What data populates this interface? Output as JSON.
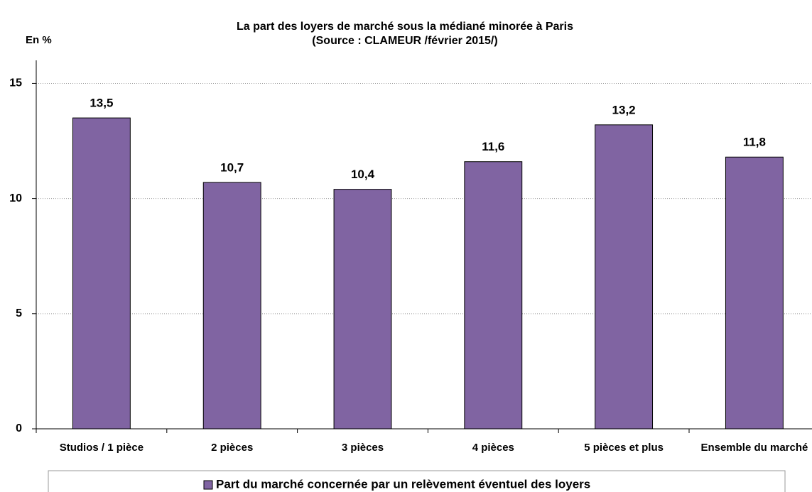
{
  "chart_data": {
    "type": "bar",
    "title": "La part des loyers de marché sous la médiané minorée à Paris",
    "subtitle": "(Source : CLAMEUR /février 2015/)",
    "y_label": "En %",
    "categories": [
      "Studios / 1 pièce",
      "2 pièces",
      "3 pièces",
      "4 pièces",
      "5 pièces et plus",
      "Ensemble du marché"
    ],
    "series": [
      {
        "name": "Part du marché concernée par un relèvement éventuel des loyers",
        "color": "#8064a2",
        "values": [
          13.5,
          10.7,
          10.4,
          11.6,
          13.2,
          11.8
        ],
        "value_labels": [
          "13,5",
          "10,7",
          "10,4",
          "11,6",
          "13,2",
          "11,8"
        ]
      }
    ],
    "ylim": [
      0,
      16
    ],
    "yticks": [
      0,
      5,
      10,
      15
    ],
    "grid": true,
    "legend": "bottom"
  }
}
